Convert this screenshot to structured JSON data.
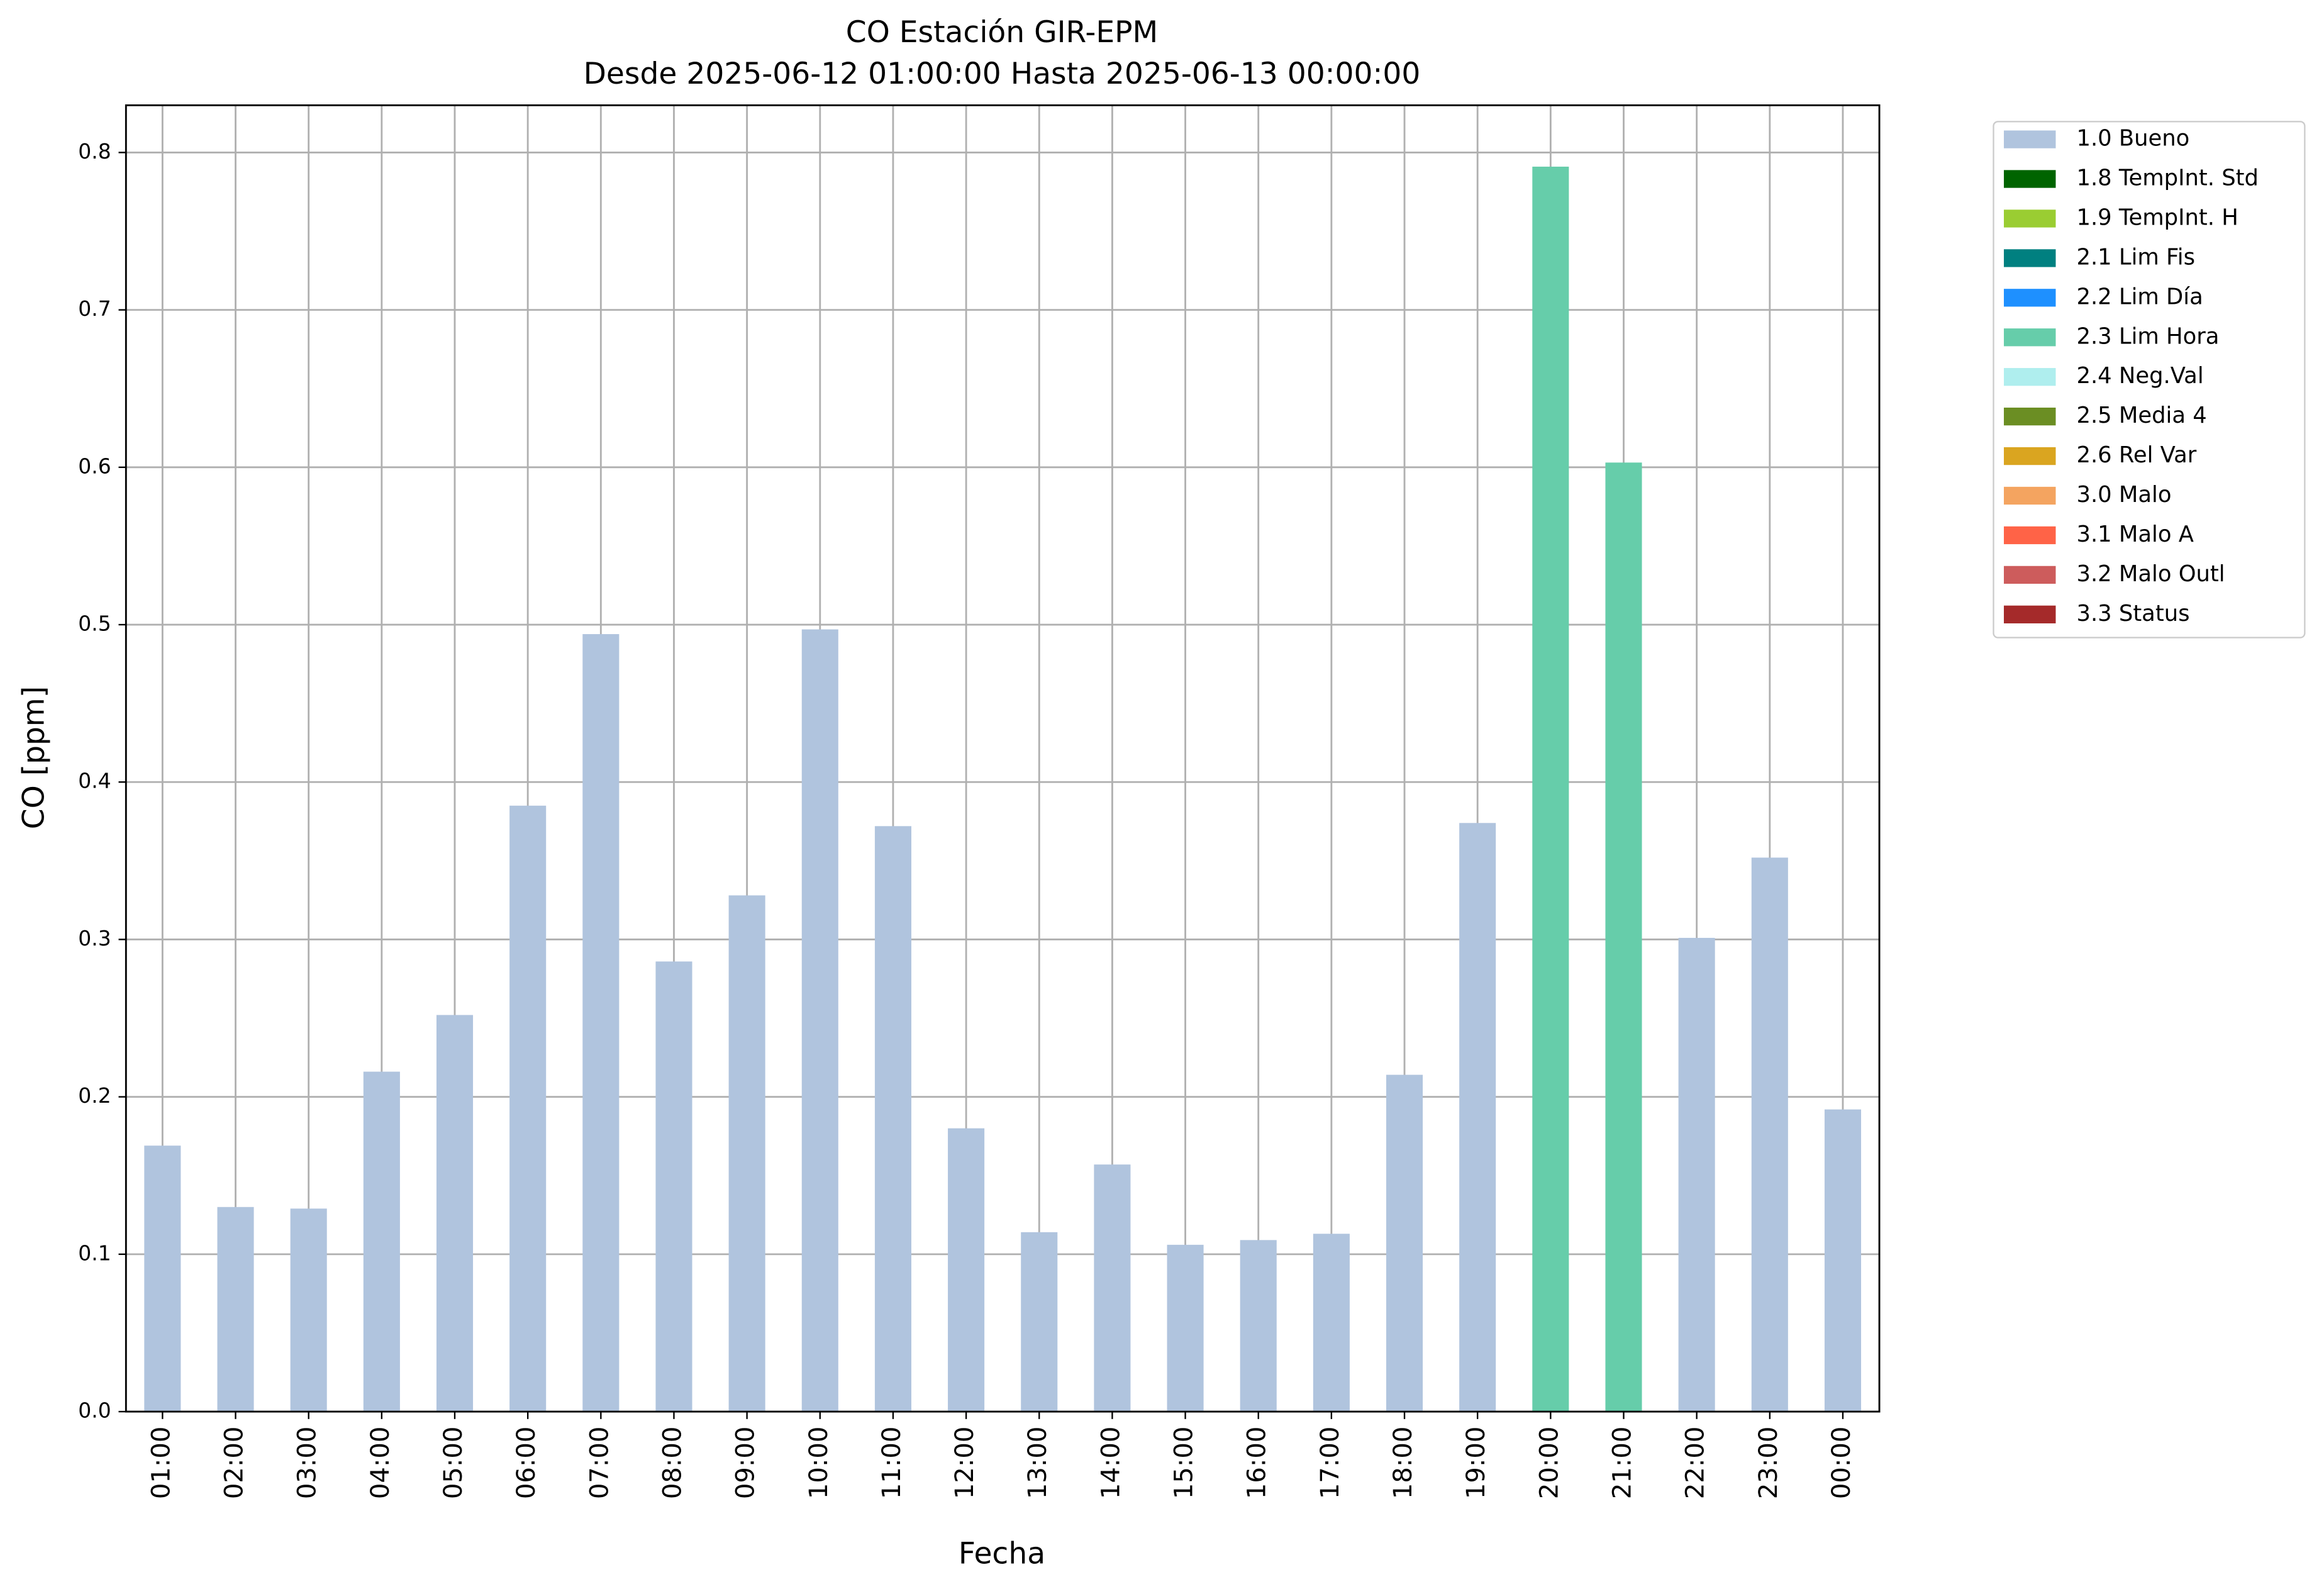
{
  "chart_data": {
    "type": "bar",
    "stacked": true,
    "title": "CO Estación GIR-EPM",
    "subtitle": "Desde 2025-06-12 01:00:00 Hasta 2025-06-13 00:00:00",
    "x_label": "Fecha",
    "y_label": "CO [ppm]",
    "categories": [
      "01:00",
      "02:00",
      "03:00",
      "04:00",
      "05:00",
      "06:00",
      "07:00",
      "08:00",
      "09:00",
      "10:00",
      "11:00",
      "12:00",
      "13:00",
      "14:00",
      "15:00",
      "16:00",
      "17:00",
      "18:00",
      "19:00",
      "20:00",
      "21:00",
      "22:00",
      "23:00",
      "00:00"
    ],
    "series": [
      {
        "name": "1.0 Bueno",
        "color": "#b0c4de",
        "values": [
          0.169,
          0.13,
          0.129,
          0.216,
          0.252,
          0.385,
          0.494,
          0.286,
          0.328,
          0.497,
          0.372,
          0.18,
          0.114,
          0.157,
          0.106,
          0.109,
          0.113,
          0.214,
          0.374,
          null,
          null,
          0.301,
          0.352,
          0.192
        ]
      },
      {
        "name": "1.8 TempInt. Std",
        "color": "#006400",
        "values": [
          null,
          null,
          null,
          null,
          null,
          null,
          null,
          null,
          null,
          null,
          null,
          null,
          null,
          null,
          null,
          null,
          null,
          null,
          null,
          null,
          null,
          null,
          null,
          null
        ]
      },
      {
        "name": "1.9 TempInt. H",
        "color": "#9acd32",
        "values": [
          null,
          null,
          null,
          null,
          null,
          null,
          null,
          null,
          null,
          null,
          null,
          null,
          null,
          null,
          null,
          null,
          null,
          null,
          null,
          null,
          null,
          null,
          null,
          null
        ]
      },
      {
        "name": "2.1 Lim Fis",
        "color": "#008080",
        "values": [
          null,
          null,
          null,
          null,
          null,
          null,
          null,
          null,
          null,
          null,
          null,
          null,
          null,
          null,
          null,
          null,
          null,
          null,
          null,
          null,
          null,
          null,
          null,
          null
        ]
      },
      {
        "name": "2.2 Lim Día",
        "color": "#1e90ff",
        "values": [
          null,
          null,
          null,
          null,
          null,
          null,
          null,
          null,
          null,
          null,
          null,
          null,
          null,
          null,
          null,
          null,
          null,
          null,
          null,
          null,
          null,
          null,
          null,
          null
        ]
      },
      {
        "name": "2.3 Lim Hora",
        "color": "#66cdaa",
        "values": [
          null,
          null,
          null,
          null,
          null,
          null,
          null,
          null,
          null,
          null,
          null,
          null,
          null,
          null,
          null,
          null,
          null,
          null,
          null,
          0.791,
          0.603,
          null,
          null,
          null
        ]
      },
      {
        "name": "2.4 Neg.Val",
        "color": "#afeeee",
        "values": [
          null,
          null,
          null,
          null,
          null,
          null,
          null,
          null,
          null,
          null,
          null,
          null,
          null,
          null,
          null,
          null,
          null,
          null,
          null,
          null,
          null,
          null,
          null,
          null
        ]
      },
      {
        "name": "2.5 Media 4",
        "color": "#6b8e23",
        "values": [
          null,
          null,
          null,
          null,
          null,
          null,
          null,
          null,
          null,
          null,
          null,
          null,
          null,
          null,
          null,
          null,
          null,
          null,
          null,
          null,
          null,
          null,
          null,
          null
        ]
      },
      {
        "name": "2.6 Rel Var",
        "color": "#daa520",
        "values": [
          null,
          null,
          null,
          null,
          null,
          null,
          null,
          null,
          null,
          null,
          null,
          null,
          null,
          null,
          null,
          null,
          null,
          null,
          null,
          null,
          null,
          null,
          null,
          null
        ]
      },
      {
        "name": "3.0 Malo",
        "color": "#f4a460",
        "values": [
          null,
          null,
          null,
          null,
          null,
          null,
          null,
          null,
          null,
          null,
          null,
          null,
          null,
          null,
          null,
          null,
          null,
          null,
          null,
          null,
          null,
          null,
          null,
          null
        ]
      },
      {
        "name": "3.1 Malo A",
        "color": "#ff6347",
        "values": [
          null,
          null,
          null,
          null,
          null,
          null,
          null,
          null,
          null,
          null,
          null,
          null,
          null,
          null,
          null,
          null,
          null,
          null,
          null,
          null,
          null,
          null,
          null,
          null
        ]
      },
      {
        "name": "3.2 Malo Outl",
        "color": "#cd5c5c",
        "values": [
          null,
          null,
          null,
          null,
          null,
          null,
          null,
          null,
          null,
          null,
          null,
          null,
          null,
          null,
          null,
          null,
          null,
          null,
          null,
          null,
          null,
          null,
          null,
          null
        ]
      },
      {
        "name": "3.3 Status",
        "color": "#a52a2a",
        "values": [
          null,
          null,
          null,
          null,
          null,
          null,
          null,
          null,
          null,
          null,
          null,
          null,
          null,
          null,
          null,
          null,
          null,
          null,
          null,
          null,
          null,
          null,
          null,
          null
        ]
      }
    ],
    "ylim": [
      0,
      0.83
    ],
    "yticks": [
      {
        "value": 0,
        "label": "0.0"
      },
      0.1,
      0.2,
      0.3,
      0.4,
      0.5,
      0.6,
      0.7,
      0.8
    ],
    "grid": true,
    "legend": "outside-upper-right"
  }
}
